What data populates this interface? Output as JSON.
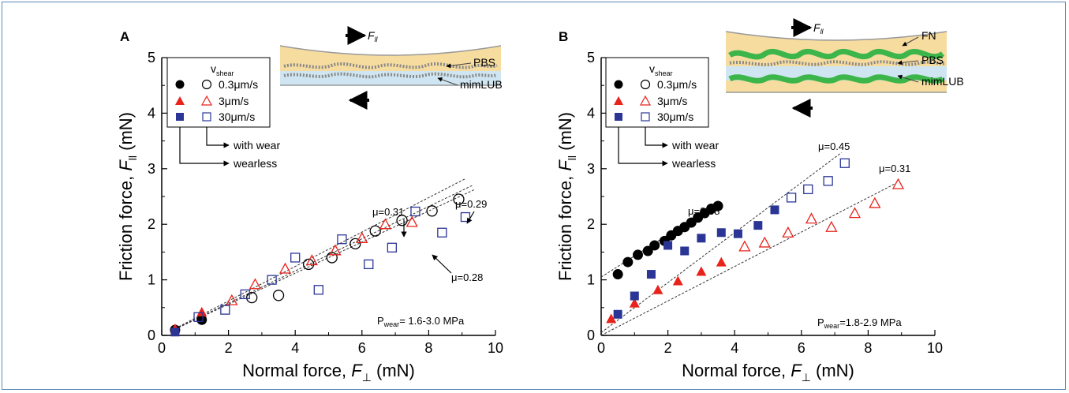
{
  "colors": {
    "frame": "#5a88b8",
    "black": "#000000",
    "red": "#e8231c",
    "blue": "#2a3596",
    "pbs_layer": "#f7dca0",
    "lubricant": "#cfe6f2",
    "fibronectin": "#3cb54a"
  },
  "symbols": {
    "circle": "●",
    "triangle": "▲",
    "square": "■",
    "arrow_right": "arrow-right-icon",
    "arrow_left": "arrow-left-icon"
  },
  "chart_data": [
    {
      "type": "scatter",
      "panel_label": "A",
      "xlabel_prefix": "Normal force, ",
      "xlabel_var": "F",
      "xlabel_sub": "⊥",
      "xlabel_unit": " (mN)",
      "ylabel_prefix": "Friction force, ",
      "ylabel_var": "F",
      "ylabel_sub": "ll",
      "ylabel_unit": " (mN)",
      "xlim": [
        0,
        10
      ],
      "ylim": [
        0,
        5
      ],
      "xticks": [
        "0",
        "2",
        "4",
        "6",
        "8",
        "10"
      ],
      "yticks": [
        "0",
        "1",
        "2",
        "3",
        "4",
        "5"
      ],
      "legend": {
        "title": "v",
        "title_sub": "shear",
        "entries": [
          "0.3μm/s",
          "3μm/s",
          "30μm/s"
        ],
        "with_wear": "with wear",
        "wearless": "wearless"
      },
      "inset": {
        "top_force": "F",
        "top_force_sub": "ll",
        "labels": [
          "PBS",
          "mimLUB"
        ]
      },
      "wear_note": {
        "prefix": "P",
        "sub": "wear",
        "value": "= 1.6-3.0 MPa"
      },
      "fit_lines": [
        {
          "label": "μ=0.31",
          "slope": 0.31
        },
        {
          "label": "μ=0.29",
          "slope": 0.29
        },
        {
          "label": "μ=0.28",
          "slope": 0.28
        }
      ],
      "series": [
        {
          "name": "0.3μm/s",
          "marker": "circle",
          "filled": true,
          "color": "#000000",
          "x": [
            0.4,
            1.2
          ],
          "y": [
            0.1,
            0.28
          ]
        },
        {
          "name": "0.3μm/s",
          "marker": "circle",
          "filled": false,
          "color": "#000000",
          "x": [
            2.7,
            3.5,
            4.4,
            5.1,
            5.8,
            6.4,
            7.2,
            8.1,
            8.9
          ],
          "y": [
            0.68,
            0.72,
            1.28,
            1.4,
            1.65,
            1.88,
            2.07,
            2.24,
            2.45
          ]
        },
        {
          "name": "3μm/s",
          "marker": "triangle",
          "filled": true,
          "color": "#e8231c",
          "x": [
            0.4,
            1.2
          ],
          "y": [
            0.12,
            0.42
          ]
        },
        {
          "name": "3μm/s",
          "marker": "triangle",
          "filled": false,
          "color": "#e8231c",
          "x": [
            2.1,
            2.8,
            3.7,
            4.5,
            5.2,
            6.0,
            6.7,
            7.5
          ],
          "y": [
            0.63,
            0.92,
            1.2,
            1.35,
            1.53,
            1.75,
            2.0,
            2.04
          ]
        },
        {
          "name": "30μm/s",
          "marker": "square",
          "filled": true,
          "color": "#2a3596",
          "x": [
            0.4
          ],
          "y": [
            0.06
          ]
        },
        {
          "name": "30μm/s",
          "marker": "square",
          "filled": false,
          "color": "#2a3596",
          "x": [
            1.1,
            1.9,
            2.5,
            3.3,
            4.0,
            4.7,
            5.4,
            6.2,
            6.9,
            7.6,
            8.4,
            9.1
          ],
          "y": [
            0.33,
            0.46,
            0.74,
            1.0,
            1.4,
            0.82,
            1.73,
            1.28,
            1.58,
            2.23,
            1.85,
            2.13
          ]
        }
      ]
    },
    {
      "type": "scatter",
      "panel_label": "B",
      "xlabel_prefix": "Normal force, ",
      "xlabel_var": "F",
      "xlabel_sub": "⊥",
      "xlabel_unit": " (mN)",
      "ylabel_prefix": "Friction force, ",
      "ylabel_var": "F",
      "ylabel_sub": "ll",
      "ylabel_unit": " (mN)",
      "xlim": [
        0,
        10
      ],
      "ylim": [
        0,
        5
      ],
      "xticks": [
        "0",
        "2",
        "4",
        "6",
        "8",
        "10"
      ],
      "yticks": [
        "0",
        "1",
        "2",
        "3",
        "4",
        "5"
      ],
      "legend": {
        "title": "v",
        "title_sub": "shear",
        "entries": [
          "0.3μm/s",
          "3μm/s",
          "30μm/s"
        ],
        "with_wear": "with wear",
        "wearless": "wearless"
      },
      "inset": {
        "top_force": "F",
        "top_force_sub": "ll",
        "labels": [
          "FN",
          "PBS",
          "mimLUB"
        ]
      },
      "wear_note": {
        "prefix": "P",
        "sub": "wear",
        "value": "=1.8-2.9 MPa"
      },
      "fit_lines": [
        {
          "label": "μ=0.45",
          "slope": 0.45
        },
        {
          "label": "μ=0.31",
          "slope": 0.31
        },
        {
          "label": "μ=0.38",
          "slope": 0.38
        }
      ],
      "series": [
        {
          "name": "0.3μm/s",
          "marker": "circle",
          "filled": true,
          "color": "#000000",
          "x": [
            0.5,
            0.8,
            1.1,
            1.4,
            1.6,
            1.9,
            2.1,
            2.3,
            2.5,
            2.7,
            2.9,
            3.1,
            3.3,
            3.5
          ],
          "y": [
            1.1,
            1.32,
            1.45,
            1.52,
            1.62,
            1.7,
            1.8,
            1.88,
            1.95,
            2.03,
            2.12,
            2.2,
            2.28,
            2.33
          ]
        },
        {
          "name": "3μm/s",
          "marker": "triangle",
          "filled": true,
          "color": "#e8231c",
          "x": [
            0.3,
            1.0,
            1.7,
            2.3,
            3.0,
            3.6
          ],
          "y": [
            0.3,
            0.58,
            0.82,
            0.98,
            1.15,
            1.32
          ]
        },
        {
          "name": "3μm/s",
          "marker": "triangle",
          "filled": false,
          "color": "#e8231c",
          "x": [
            4.3,
            4.9,
            5.6,
            6.3,
            6.9,
            7.6,
            8.2,
            8.9
          ],
          "y": [
            1.6,
            1.67,
            1.85,
            2.1,
            1.95,
            2.2,
            2.38,
            2.72
          ]
        },
        {
          "name": "30μm/s",
          "marker": "square",
          "filled": true,
          "color": "#2a3596",
          "x": [
            0.5,
            1.0,
            1.5,
            2.0,
            2.5,
            3.0,
            3.6,
            4.1,
            4.7,
            5.2
          ],
          "y": [
            0.38,
            0.71,
            1.1,
            1.62,
            1.52,
            1.75,
            1.85,
            1.83,
            1.98,
            2.26
          ]
        },
        {
          "name": "30μm/s",
          "marker": "square",
          "filled": false,
          "color": "#2a3596",
          "x": [
            5.7,
            6.2,
            6.8,
            7.3
          ],
          "y": [
            2.48,
            2.63,
            2.78,
            3.1
          ]
        }
      ]
    }
  ]
}
